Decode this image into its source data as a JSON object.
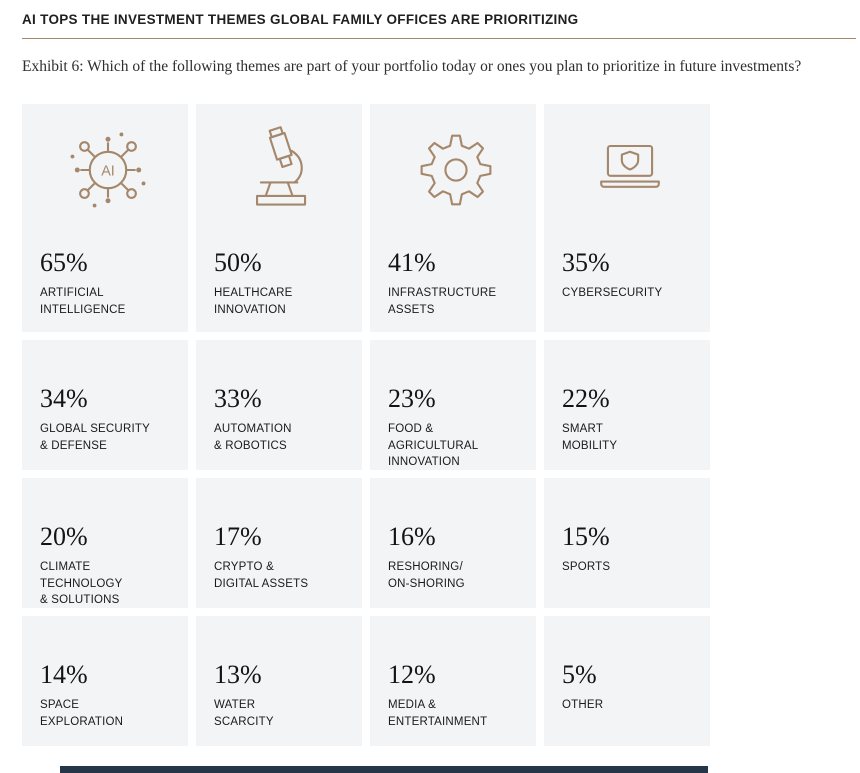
{
  "header": {
    "title": "AI TOPS THE INVESTMENT THEMES GLOBAL FAMILY OFFICES ARE PRIORITIZING",
    "subtitle": "Exhibit 6: Which of the following themes are part of your portfolio today or ones you plan to prioritize in future investments?"
  },
  "colors": {
    "accent": "#a5876b",
    "card_background": "#f3f4f6",
    "text": "#1a1a1a",
    "bottom_bar": "#253648"
  },
  "cards": [
    {
      "value": "65%",
      "label": "ARTIFICIAL\nINTELLIGENCE",
      "icon": "ai-network-icon"
    },
    {
      "value": "50%",
      "label": "HEALTHCARE\nINNOVATION",
      "icon": "microscope-icon"
    },
    {
      "value": "41%",
      "label": "INFRASTRUCTURE\nASSETS",
      "icon": "gear-icon"
    },
    {
      "value": "35%",
      "label": "CYBERSECURITY",
      "icon": "laptop-shield-icon"
    },
    {
      "value": "34%",
      "label": "GLOBAL SECURITY\n& DEFENSE"
    },
    {
      "value": "33%",
      "label": "AUTOMATION\n& ROBOTICS"
    },
    {
      "value": "23%",
      "label": "FOOD & AGRICULTURAL\nINNOVATION"
    },
    {
      "value": "22%",
      "label": "SMART\nMOBILITY"
    },
    {
      "value": "20%",
      "label": "CLIMATE TECHNOLOGY\n& SOLUTIONS"
    },
    {
      "value": "17%",
      "label": "CRYPTO &\nDIGITAL ASSETS"
    },
    {
      "value": "16%",
      "label": "RESHORING/\nON-SHORING"
    },
    {
      "value": "15%",
      "label": "SPORTS"
    },
    {
      "value": "14%",
      "label": "SPACE\nEXPLORATION"
    },
    {
      "value": "13%",
      "label": "WATER\nSCARCITY"
    },
    {
      "value": "12%",
      "label": "MEDIA &\nENTERTAINMENT"
    },
    {
      "value": "5%",
      "label": "OTHER"
    }
  ],
  "chart_data": {
    "type": "table",
    "title": "AI TOPS THE INVESTMENT THEMES GLOBAL FAMILY OFFICES ARE PRIORITIZING",
    "subtitle": "Exhibit 6: Which of the following themes are part of your portfolio today or ones you plan to prioritize in future investments?",
    "unit": "%",
    "categories": [
      "Artificial intelligence",
      "Healthcare innovation",
      "Infrastructure assets",
      "Cybersecurity",
      "Global security & defense",
      "Automation & robotics",
      "Food & agricultural innovation",
      "Smart mobility",
      "Climate technology & solutions",
      "Crypto & digital assets",
      "Reshoring/on-shoring",
      "Sports",
      "Space exploration",
      "Water scarcity",
      "Media & entertainment",
      "Other"
    ],
    "values": [
      65,
      50,
      41,
      35,
      34,
      33,
      23,
      22,
      20,
      17,
      16,
      15,
      14,
      13,
      12,
      5
    ],
    "legend": "none",
    "grid": false
  }
}
